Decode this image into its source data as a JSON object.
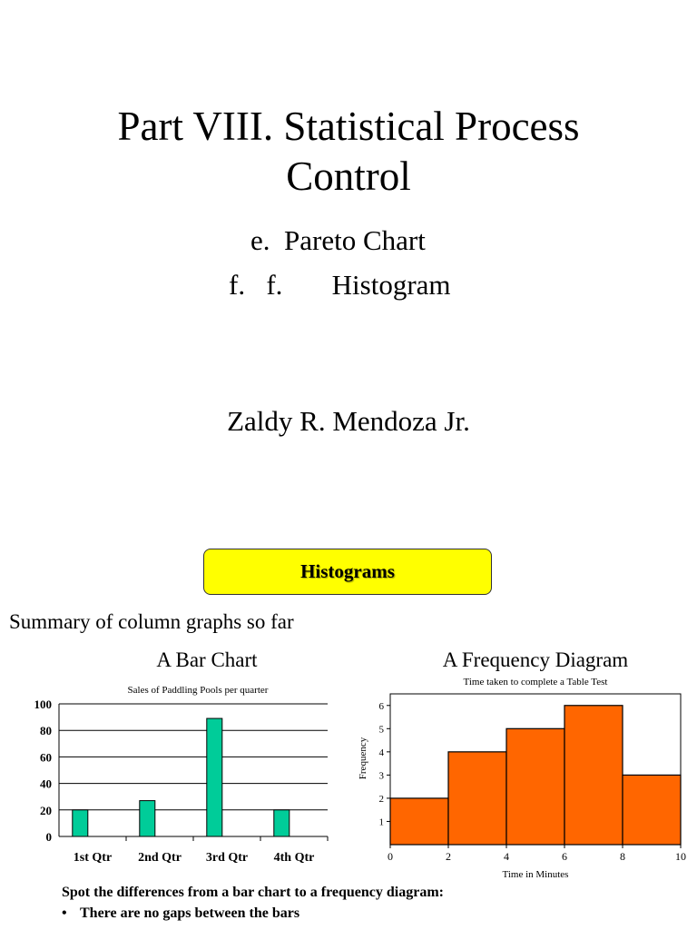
{
  "slide": {
    "title_line1": "Part VIII.  Statistical Process",
    "title_line2": "Control",
    "item_e": "e.  Pareto Chart",
    "item_f": "f.   f.       Histogram",
    "author": "Zaldy R. Mendoza Jr."
  },
  "section": {
    "banner": "Histograms",
    "summary": "Summary of column graphs so far",
    "bar_heading": "A Bar Chart",
    "freq_heading": "A Frequency Diagram"
  },
  "notes": {
    "intro": "Spot the differences from a bar chart to a frequency diagram:",
    "bullets": [
      "There are no gaps between the bars"
    ]
  },
  "colors": {
    "bar": "#00cc99",
    "histogram": "#ff6600",
    "banner": "#ffff00"
  },
  "chart_data": [
    {
      "type": "bar",
      "title": "Sales of Paddling Pools per quarter",
      "categories": [
        "1st Qtr",
        "2nd Qtr",
        "3rd Qtr",
        "4th Qtr"
      ],
      "values": [
        20,
        27,
        89,
        20
      ],
      "ylim": [
        0,
        100
      ],
      "yticks": [
        0,
        20,
        40,
        60,
        80,
        100
      ],
      "xlabel": "",
      "ylabel": "",
      "grid": true,
      "legend": "none"
    },
    {
      "type": "histogram",
      "title": "Time taken to complete a Table Test",
      "bins": [
        [
          0,
          2
        ],
        [
          2,
          4
        ],
        [
          4,
          6
        ],
        [
          6,
          8
        ],
        [
          8,
          10
        ]
      ],
      "values": [
        2,
        4,
        5,
        6,
        3
      ],
      "xlim": [
        0,
        10
      ],
      "xticks": [
        0,
        2,
        4,
        6,
        8,
        10
      ],
      "ylim": [
        0,
        6.5
      ],
      "yticks": [
        1,
        2,
        3,
        4,
        5,
        6
      ],
      "xlabel": "Time in Minutes",
      "ylabel": "Frequency",
      "grid": false,
      "legend": "none"
    }
  ]
}
